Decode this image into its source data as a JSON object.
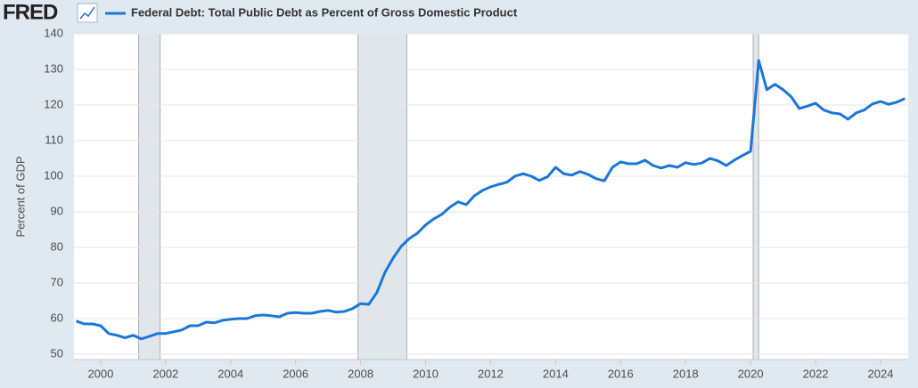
{
  "brand": "FRED",
  "chart_data": {
    "type": "line",
    "y_label": "Percent of GDP",
    "x": [
      1999.25,
      1999.5,
      1999.75,
      2000,
      2000.25,
      2000.5,
      2000.75,
      2001,
      2001.25,
      2001.5,
      2001.75,
      2002,
      2002.25,
      2002.5,
      2002.75,
      2003,
      2003.25,
      2003.5,
      2003.75,
      2004,
      2004.25,
      2004.5,
      2004.75,
      2005,
      2005.25,
      2005.5,
      2005.75,
      2006,
      2006.25,
      2006.5,
      2006.75,
      2007,
      2007.25,
      2007.5,
      2007.75,
      2008,
      2008.25,
      2008.5,
      2008.75,
      2009,
      2009.25,
      2009.5,
      2009.75,
      2010,
      2010.25,
      2010.5,
      2010.75,
      2011,
      2011.25,
      2011.5,
      2011.75,
      2012,
      2012.25,
      2012.5,
      2012.75,
      2013,
      2013.25,
      2013.5,
      2013.75,
      2014,
      2014.25,
      2014.5,
      2014.75,
      2015,
      2015.25,
      2015.5,
      2015.75,
      2016,
      2016.25,
      2016.5,
      2016.75,
      2017,
      2017.25,
      2017.5,
      2017.75,
      2018,
      2018.25,
      2018.5,
      2018.75,
      2019,
      2019.25,
      2019.5,
      2019.75,
      2020,
      2020.25,
      2020.5,
      2020.75,
      2021,
      2021.25,
      2021.5,
      2021.75,
      2022,
      2022.25,
      2022.5,
      2022.75,
      2023,
      2023.25,
      2023.5,
      2023.75,
      2024,
      2024.25,
      2024.5,
      2024.75
    ],
    "series": [
      {
        "name": "Federal Debt: Total Public Debt as Percent of Gross Domestic Product",
        "color": "#1a76d8",
        "values": [
          59.3,
          58.5,
          58.5,
          58.0,
          55.8,
          55.3,
          54.6,
          55.3,
          54.3,
          55.0,
          55.8,
          55.8,
          56.3,
          56.8,
          58.0,
          58.0,
          59.0,
          58.8,
          59.5,
          59.8,
          60.0,
          60.0,
          60.8,
          61.0,
          60.8,
          60.5,
          61.5,
          61.7,
          61.5,
          61.5,
          62.0,
          62.3,
          61.8,
          62.0,
          62.8,
          64.2,
          64.0,
          67.3,
          73.0,
          77.0,
          80.3,
          82.5,
          84.0,
          86.3,
          88.0,
          89.3,
          91.3,
          92.8,
          92.0,
          94.5,
          96.0,
          97.0,
          97.7,
          98.3,
          100.0,
          100.7,
          100.0,
          98.8,
          99.8,
          102.5,
          100.7,
          100.3,
          101.3,
          100.5,
          99.3,
          98.7,
          102.5,
          104.0,
          103.5,
          103.5,
          104.5,
          103.0,
          102.3,
          103.0,
          102.5,
          103.8,
          103.3,
          103.7,
          105.0,
          104.3,
          103.0,
          104.5,
          105.8,
          107.0,
          132.5,
          124.3,
          125.8,
          124.3,
          122.3,
          119.0,
          119.7,
          120.5,
          118.6,
          117.8,
          117.5,
          116.0,
          117.8,
          118.6,
          120.3,
          121.0,
          120.2,
          120.8,
          121.8
        ]
      }
    ],
    "shaded_ranges": [
      [
        2001.17,
        2001.83
      ],
      [
        2007.92,
        2009.42
      ],
      [
        2020.08,
        2020.25
      ]
    ],
    "shade_color": "#e1e6ea",
    "xlim": [
      1999.18,
      2024.85
    ],
    "ylim": [
      48.5,
      140
    ],
    "xticks": [
      2000,
      2002,
      2004,
      2006,
      2008,
      2010,
      2012,
      2014,
      2016,
      2018,
      2020,
      2022,
      2024
    ],
    "yticks": [
      50,
      60,
      70,
      80,
      90,
      100,
      110,
      120,
      130,
      140
    ],
    "grid": true
  }
}
